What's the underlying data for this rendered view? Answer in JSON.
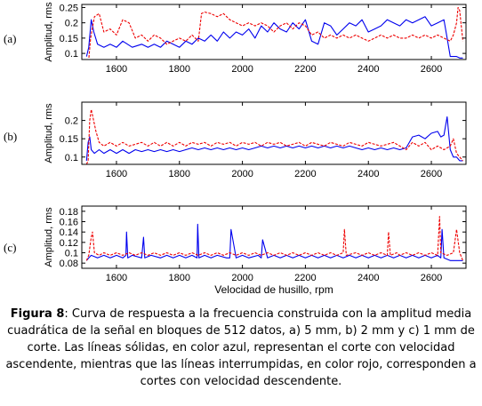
{
  "caption": {
    "label": "Figura 8",
    "text": ": Curva de respuesta a la frecuencia construida con la amplitud media cuadrática de la señal en bloques de 512 datos,  a) 5 mm,  b) 2 mm y c) 1 mm de corte. Las líneas sólidas, en color azul, representan el corte con velocidad ascendente, mientras que las líneas interrumpidas, en color rojo, corresponden a cortes con velocidad descendente."
  },
  "colors": {
    "ascending": "#0000ee",
    "descending": "#ee0000",
    "axis": "#000000"
  },
  "chart_data": [
    {
      "type": "line",
      "panel_label": "(a)",
      "ylabel": "Amplitud, rms",
      "xlabel": "",
      "xlim": [
        1490,
        2710
      ],
      "ylim": [
        0.08,
        0.26
      ],
      "xticks": [
        1600,
        1800,
        2000,
        2200,
        2400,
        2600
      ],
      "yticks": [
        0.1,
        0.15,
        0.2,
        0.25
      ],
      "ytick_labels": [
        "0.1",
        "0.15",
        "0.2",
        "0.25"
      ],
      "series": [
        {
          "style": "solid",
          "color": "#0000ee",
          "x": [
            1505,
            1512,
            1520,
            1528,
            1540,
            1560,
            1580,
            1600,
            1620,
            1650,
            1680,
            1700,
            1720,
            1740,
            1760,
            1780,
            1800,
            1820,
            1840,
            1860,
            1880,
            1900,
            1920,
            1940,
            1960,
            1980,
            2000,
            2020,
            2040,
            2060,
            2080,
            2100,
            2120,
            2140,
            2160,
            2180,
            2200,
            2220,
            2240,
            2260,
            2280,
            2300,
            2320,
            2340,
            2360,
            2380,
            2400,
            2420,
            2440,
            2460,
            2480,
            2500,
            2520,
            2540,
            2560,
            2580,
            2600,
            2620,
            2640,
            2650,
            2660,
            2670,
            2680,
            2690,
            2700
          ],
          "y": [
            0.09,
            0.12,
            0.21,
            0.17,
            0.13,
            0.12,
            0.13,
            0.12,
            0.14,
            0.12,
            0.13,
            0.12,
            0.13,
            0.12,
            0.14,
            0.13,
            0.12,
            0.14,
            0.13,
            0.15,
            0.14,
            0.16,
            0.14,
            0.17,
            0.15,
            0.17,
            0.16,
            0.18,
            0.15,
            0.19,
            0.17,
            0.2,
            0.18,
            0.17,
            0.2,
            0.18,
            0.21,
            0.14,
            0.13,
            0.2,
            0.19,
            0.16,
            0.18,
            0.2,
            0.19,
            0.21,
            0.17,
            0.18,
            0.19,
            0.21,
            0.2,
            0.19,
            0.21,
            0.2,
            0.21,
            0.22,
            0.19,
            0.2,
            0.21,
            0.15,
            0.09,
            0.09,
            0.09,
            0.085,
            0.085
          ]
        },
        {
          "style": "dashed",
          "color": "#ee0000",
          "x": [
            1505,
            1512,
            1518,
            1530,
            1545,
            1560,
            1580,
            1600,
            1620,
            1640,
            1660,
            1680,
            1700,
            1720,
            1740,
            1760,
            1780,
            1800,
            1820,
            1840,
            1860,
            1870,
            1880,
            1900,
            1920,
            1940,
            1960,
            1980,
            2000,
            2020,
            2040,
            2060,
            2080,
            2100,
            2120,
            2140,
            2160,
            2180,
            2200,
            2220,
            2240,
            2260,
            2280,
            2300,
            2320,
            2340,
            2360,
            2380,
            2400,
            2420,
            2440,
            2460,
            2480,
            2500,
            2520,
            2540,
            2560,
            2580,
            2600,
            2620,
            2640,
            2660,
            2670,
            2680,
            2685,
            2690,
            2700
          ],
          "y": [
            0.08,
            0.08,
            0.15,
            0.22,
            0.23,
            0.17,
            0.18,
            0.16,
            0.21,
            0.2,
            0.15,
            0.16,
            0.14,
            0.16,
            0.15,
            0.13,
            0.14,
            0.15,
            0.14,
            0.16,
            0.14,
            0.23,
            0.235,
            0.23,
            0.22,
            0.23,
            0.21,
            0.2,
            0.19,
            0.2,
            0.19,
            0.2,
            0.19,
            0.17,
            0.19,
            0.2,
            0.18,
            0.2,
            0.19,
            0.16,
            0.17,
            0.15,
            0.16,
            0.15,
            0.16,
            0.15,
            0.16,
            0.15,
            0.14,
            0.15,
            0.16,
            0.15,
            0.16,
            0.15,
            0.15,
            0.16,
            0.15,
            0.16,
            0.15,
            0.16,
            0.15,
            0.14,
            0.16,
            0.2,
            0.25,
            0.24,
            0.14
          ]
        }
      ]
    },
    {
      "type": "line",
      "panel_label": "(b)",
      "ylabel": "Amplitud, rms",
      "xlabel": "",
      "xlim": [
        1490,
        2710
      ],
      "ylim": [
        0.08,
        0.25
      ],
      "xticks": [
        1600,
        1800,
        2000,
        2200,
        2400,
        2600
      ],
      "yticks": [
        0.1,
        0.15,
        0.2
      ],
      "ytick_labels": [
        "0.1",
        "0.15",
        "0.2"
      ],
      "series": [
        {
          "style": "solid",
          "color": "#0000ee",
          "x": [
            1505,
            1510,
            1515,
            1520,
            1530,
            1545,
            1560,
            1580,
            1600,
            1620,
            1640,
            1660,
            1680,
            1700,
            1720,
            1740,
            1760,
            1780,
            1800,
            1820,
            1840,
            1860,
            1880,
            1900,
            1920,
            1940,
            1960,
            1980,
            2000,
            2020,
            2040,
            2060,
            2080,
            2100,
            2120,
            2140,
            2160,
            2180,
            2200,
            2220,
            2240,
            2260,
            2280,
            2300,
            2320,
            2340,
            2360,
            2380,
            2400,
            2420,
            2440,
            2460,
            2480,
            2500,
            2520,
            2540,
            2560,
            2580,
            2600,
            2620,
            2630,
            2640,
            2650,
            2660,
            2670,
            2680,
            2690,
            2700
          ],
          "y": [
            0.09,
            0.14,
            0.155,
            0.12,
            0.11,
            0.12,
            0.11,
            0.12,
            0.11,
            0.12,
            0.11,
            0.12,
            0.115,
            0.12,
            0.115,
            0.12,
            0.115,
            0.12,
            0.115,
            0.12,
            0.125,
            0.12,
            0.125,
            0.12,
            0.125,
            0.12,
            0.125,
            0.12,
            0.125,
            0.12,
            0.125,
            0.13,
            0.125,
            0.13,
            0.125,
            0.13,
            0.125,
            0.13,
            0.125,
            0.13,
            0.125,
            0.13,
            0.125,
            0.13,
            0.125,
            0.13,
            0.125,
            0.12,
            0.125,
            0.12,
            0.125,
            0.12,
            0.125,
            0.12,
            0.125,
            0.155,
            0.16,
            0.15,
            0.165,
            0.17,
            0.155,
            0.16,
            0.21,
            0.12,
            0.1,
            0.1,
            0.09,
            0.09
          ]
        },
        {
          "style": "dashed",
          "color": "#ee0000",
          "x": [
            1505,
            1510,
            1515,
            1520,
            1525,
            1535,
            1545,
            1560,
            1580,
            1600,
            1620,
            1640,
            1660,
            1680,
            1700,
            1720,
            1740,
            1760,
            1780,
            1800,
            1820,
            1840,
            1860,
            1880,
            1900,
            1920,
            1940,
            1960,
            1980,
            2000,
            2020,
            2040,
            2060,
            2080,
            2100,
            2120,
            2140,
            2160,
            2180,
            2200,
            2220,
            2240,
            2260,
            2280,
            2300,
            2320,
            2340,
            2360,
            2380,
            2400,
            2420,
            2440,
            2460,
            2480,
            2500,
            2520,
            2540,
            2560,
            2580,
            2600,
            2620,
            2640,
            2660,
            2670,
            2680,
            2690,
            2700
          ],
          "y": [
            0.08,
            0.09,
            0.2,
            0.23,
            0.21,
            0.17,
            0.14,
            0.13,
            0.14,
            0.13,
            0.14,
            0.13,
            0.135,
            0.14,
            0.13,
            0.14,
            0.13,
            0.14,
            0.13,
            0.14,
            0.13,
            0.14,
            0.135,
            0.14,
            0.13,
            0.14,
            0.135,
            0.14,
            0.13,
            0.14,
            0.135,
            0.14,
            0.13,
            0.14,
            0.135,
            0.14,
            0.13,
            0.135,
            0.14,
            0.13,
            0.14,
            0.135,
            0.13,
            0.14,
            0.135,
            0.13,
            0.14,
            0.135,
            0.13,
            0.14,
            0.135,
            0.13,
            0.135,
            0.14,
            0.13,
            0.12,
            0.14,
            0.13,
            0.14,
            0.12,
            0.13,
            0.12,
            0.13,
            0.15,
            0.11,
            0.1,
            0.09
          ]
        }
      ]
    },
    {
      "type": "line",
      "panel_label": "(c)",
      "ylabel": "Amplitud, rms",
      "xlabel": "Velocidad de husillo, rpm",
      "xlim": [
        1490,
        2710
      ],
      "ylim": [
        0.07,
        0.19
      ],
      "xticks": [
        1600,
        1800,
        2000,
        2200,
        2400,
        2600
      ],
      "yticks": [
        0.08,
        0.1,
        0.12,
        0.14,
        0.16,
        0.18
      ],
      "ytick_labels": [
        "0.08",
        "0.1",
        "0.12",
        "0.14",
        "0.16",
        "0.18"
      ],
      "series": [
        {
          "style": "solid",
          "color": "#0000ee",
          "x": [
            1505,
            1512,
            1520,
            1540,
            1560,
            1580,
            1600,
            1620,
            1630,
            1632,
            1636,
            1650,
            1680,
            1686,
            1690,
            1710,
            1740,
            1760,
            1780,
            1800,
            1820,
            1840,
            1856,
            1858,
            1862,
            1880,
            1900,
            1920,
            1950,
            1960,
            1964,
            1980,
            2000,
            2020,
            2050,
            2060,
            2064,
            2080,
            2100,
            2120,
            2140,
            2160,
            2180,
            2200,
            2220,
            2240,
            2260,
            2280,
            2300,
            2320,
            2340,
            2360,
            2380,
            2400,
            2420,
            2440,
            2460,
            2480,
            2500,
            2520,
            2540,
            2560,
            2580,
            2600,
            2620,
            2630,
            2634,
            2640,
            2660,
            2680,
            2700
          ],
          "y": [
            0.085,
            0.09,
            0.095,
            0.09,
            0.095,
            0.09,
            0.095,
            0.09,
            0.095,
            0.14,
            0.09,
            0.095,
            0.09,
            0.13,
            0.09,
            0.095,
            0.09,
            0.095,
            0.09,
            0.095,
            0.09,
            0.095,
            0.09,
            0.155,
            0.09,
            0.095,
            0.09,
            0.095,
            0.09,
            0.09,
            0.145,
            0.09,
            0.095,
            0.09,
            0.095,
            0.09,
            0.125,
            0.09,
            0.095,
            0.09,
            0.095,
            0.09,
            0.095,
            0.09,
            0.095,
            0.09,
            0.095,
            0.09,
            0.095,
            0.09,
            0.095,
            0.09,
            0.095,
            0.09,
            0.095,
            0.09,
            0.095,
            0.09,
            0.095,
            0.09,
            0.095,
            0.09,
            0.095,
            0.09,
            0.095,
            0.09,
            0.145,
            0.09,
            0.085,
            0.085,
            0.085
          ]
        },
        {
          "style": "dashed",
          "color": "#ee0000",
          "x": [
            1505,
            1512,
            1520,
            1524,
            1530,
            1545,
            1560,
            1580,
            1600,
            1620,
            1640,
            1660,
            1680,
            1700,
            1720,
            1740,
            1760,
            1780,
            1800,
            1820,
            1840,
            1860,
            1880,
            1900,
            1920,
            1940,
            1960,
            1980,
            2000,
            2020,
            2040,
            2060,
            2080,
            2100,
            2120,
            2140,
            2160,
            2180,
            2200,
            2220,
            2240,
            2260,
            2280,
            2300,
            2320,
            2324,
            2330,
            2360,
            2380,
            2400,
            2420,
            2440,
            2460,
            2464,
            2470,
            2490,
            2500,
            2520,
            2540,
            2560,
            2580,
            2600,
            2620,
            2626,
            2630,
            2650,
            2670,
            2680,
            2690,
            2700
          ],
          "y": [
            0.085,
            0.095,
            0.13,
            0.14,
            0.1,
            0.095,
            0.1,
            0.095,
            0.1,
            0.095,
            0.1,
            0.095,
            0.1,
            0.095,
            0.1,
            0.095,
            0.1,
            0.095,
            0.1,
            0.095,
            0.1,
            0.095,
            0.1,
            0.095,
            0.1,
            0.095,
            0.1,
            0.095,
            0.1,
            0.095,
            0.1,
            0.095,
            0.1,
            0.095,
            0.1,
            0.095,
            0.1,
            0.095,
            0.1,
            0.095,
            0.1,
            0.095,
            0.1,
            0.095,
            0.1,
            0.145,
            0.095,
            0.1,
            0.095,
            0.1,
            0.095,
            0.1,
            0.095,
            0.14,
            0.095,
            0.1,
            0.095,
            0.1,
            0.095,
            0.1,
            0.095,
            0.1,
            0.095,
            0.17,
            0.1,
            0.095,
            0.1,
            0.145,
            0.1,
            0.085
          ]
        }
      ]
    }
  ]
}
